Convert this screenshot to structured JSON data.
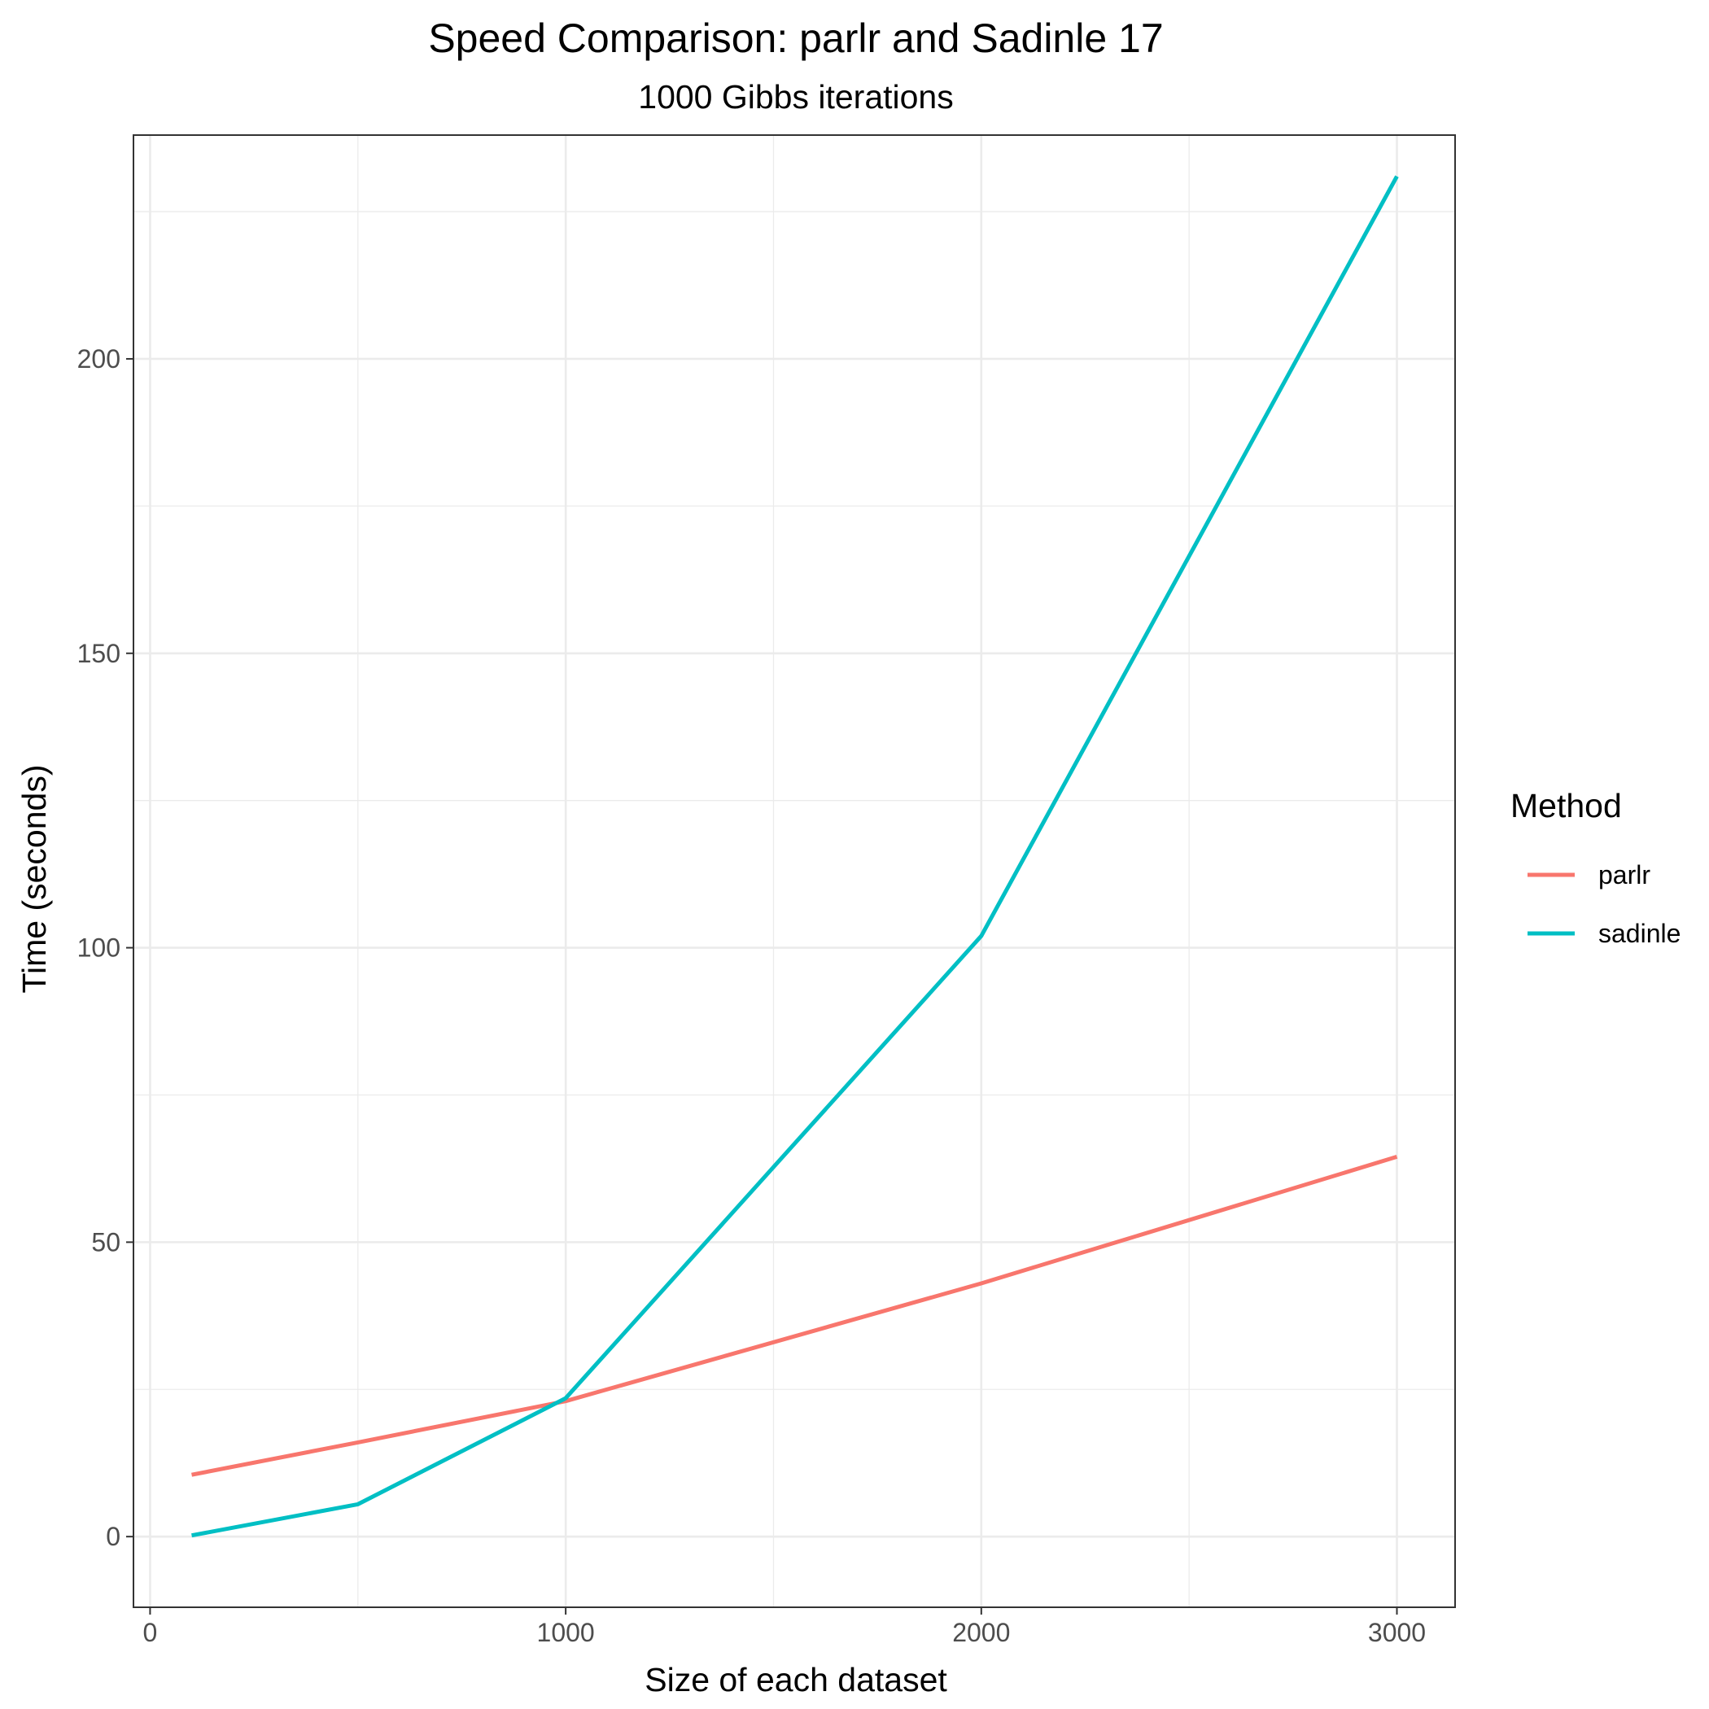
{
  "chart_data": {
    "type": "line",
    "title": "Speed Comparison: parlr and Sadinle 17",
    "subtitle": "1000 Gibbs iterations",
    "xlabel": "Size of each dataset",
    "ylabel": "Time (seconds)",
    "xlim": [
      -40,
      3140
    ],
    "ylim": [
      -12,
      238
    ],
    "x_ticks": [
      0,
      1000,
      2000,
      3000
    ],
    "x_tick_labels": [
      "0",
      "1000",
      "2000",
      "3000"
    ],
    "y_ticks": [
      0,
      50,
      100,
      150,
      200
    ],
    "y_tick_labels": [
      "0",
      "50",
      "100",
      "150",
      "200"
    ],
    "x_minor_ticks": [
      500,
      1500,
      2500
    ],
    "y_minor_ticks": [
      25,
      75,
      125,
      175,
      225
    ],
    "grid": true,
    "legend": {
      "title": "Method",
      "position": "right"
    },
    "series": [
      {
        "name": "parlr",
        "color": "#F8766D",
        "x": [
          100,
          500,
          1000,
          2000,
          3000
        ],
        "y": [
          10.5,
          16,
          23,
          43,
          64.5
        ]
      },
      {
        "name": "sadinle",
        "color": "#00BFC4",
        "x": [
          100,
          500,
          1000,
          2000,
          3000
        ],
        "y": [
          0.2,
          5.5,
          23.5,
          102,
          231
        ]
      }
    ]
  }
}
